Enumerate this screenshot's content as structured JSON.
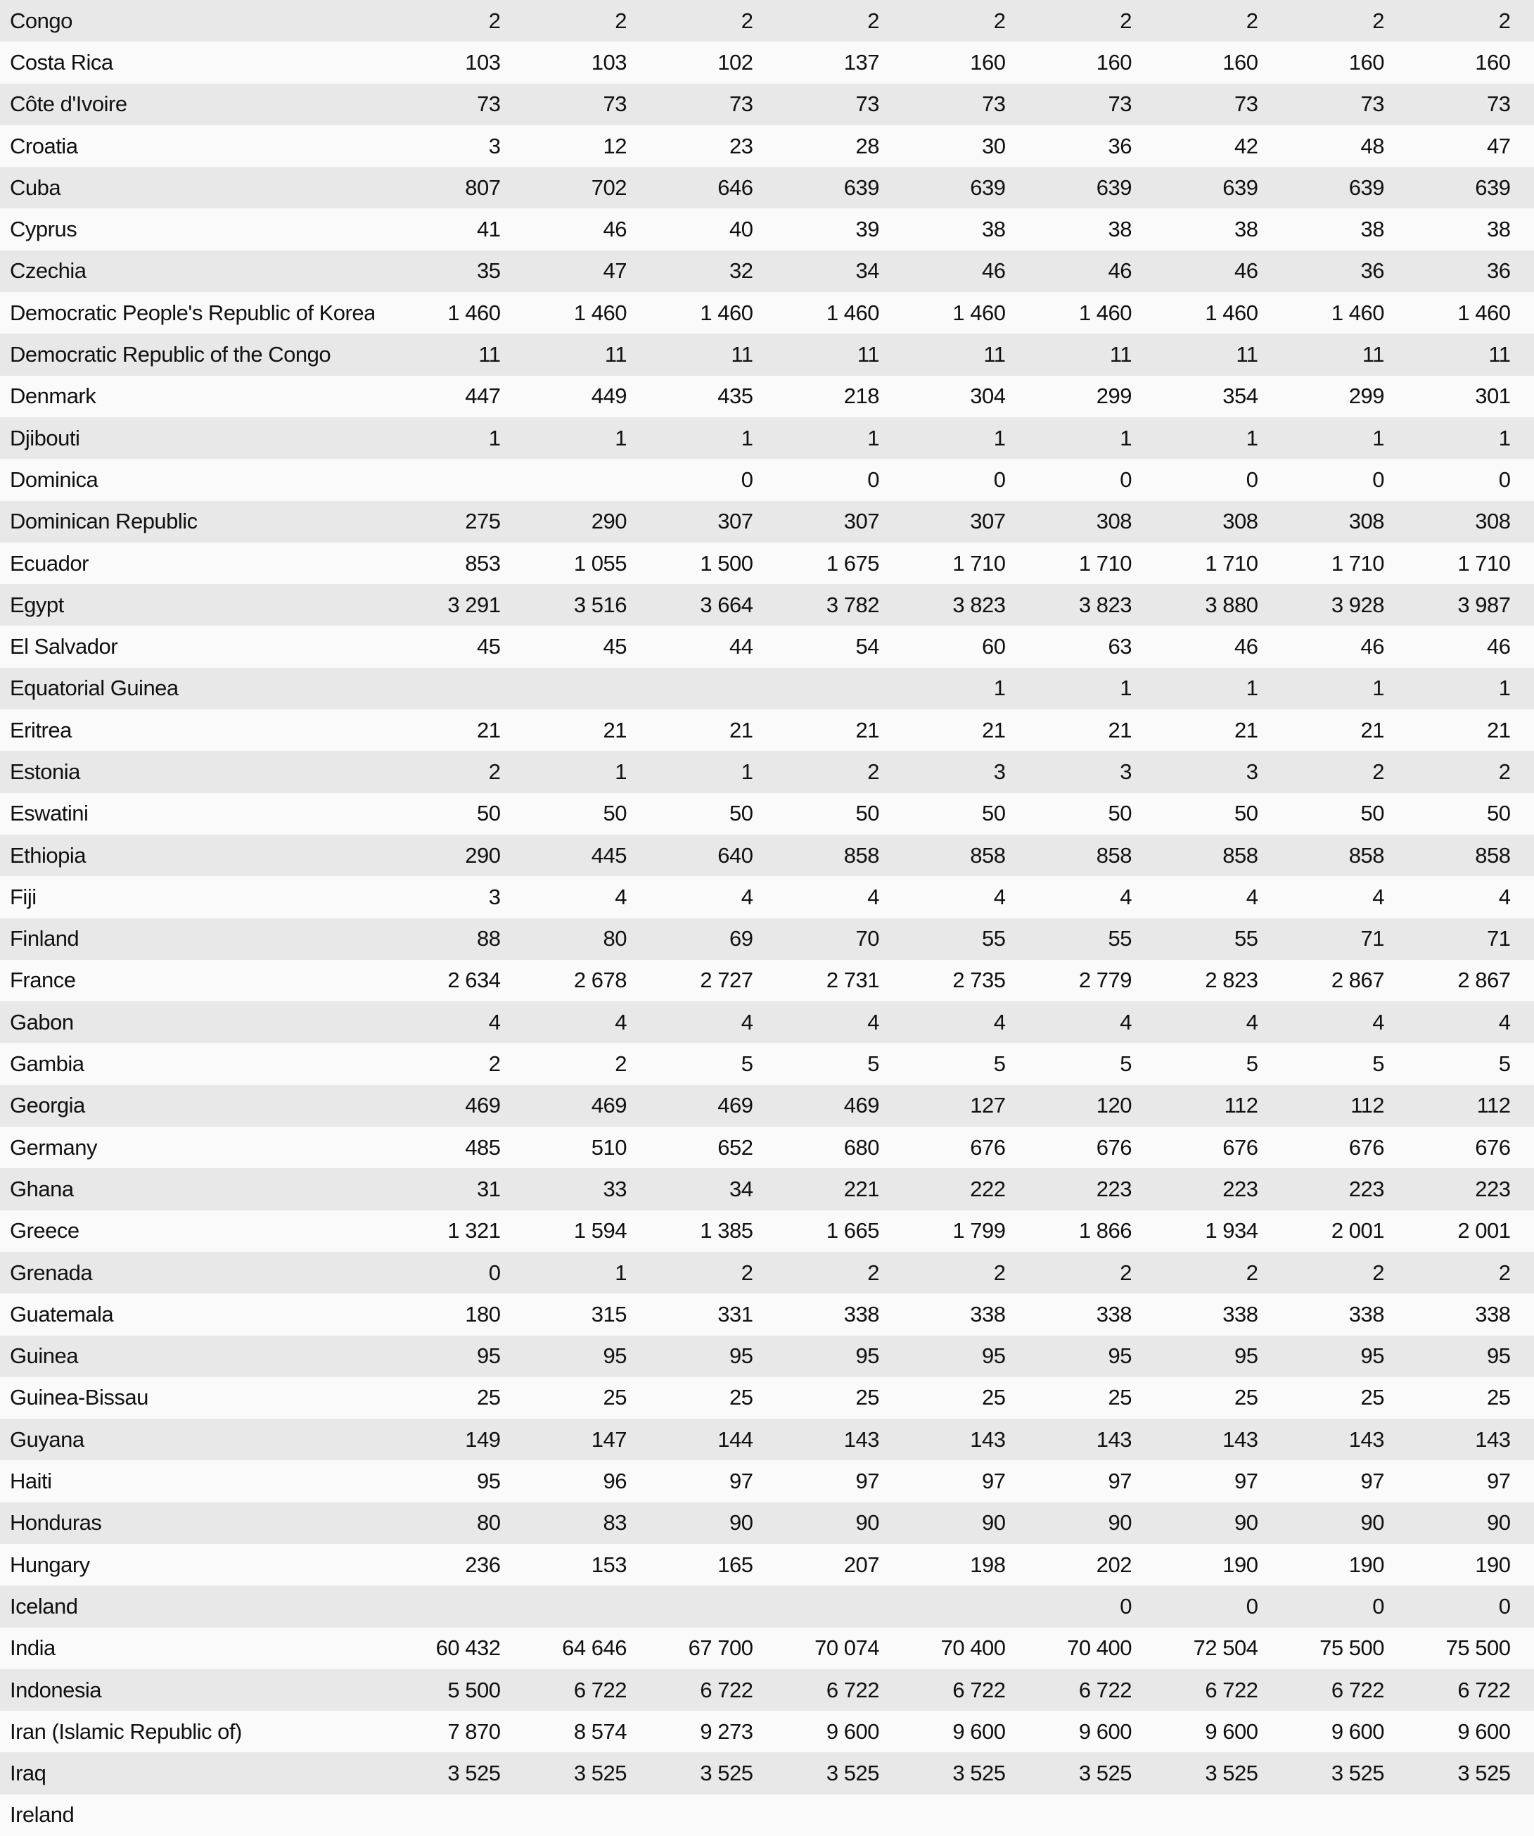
{
  "table": {
    "rows": [
      {
        "country": "Congo",
        "values": [
          "2",
          "2",
          "2",
          "2",
          "2",
          "2",
          "2",
          "2",
          "2"
        ]
      },
      {
        "country": "Costa Rica",
        "values": [
          "103",
          "103",
          "102",
          "137",
          "160",
          "160",
          "160",
          "160",
          "160"
        ]
      },
      {
        "country": "Côte d'Ivoire",
        "values": [
          "73",
          "73",
          "73",
          "73",
          "73",
          "73",
          "73",
          "73",
          "73"
        ]
      },
      {
        "country": "Croatia",
        "values": [
          "3",
          "12",
          "23",
          "28",
          "30",
          "36",
          "42",
          "48",
          "47"
        ]
      },
      {
        "country": "Cuba",
        "values": [
          "807",
          "702",
          "646",
          "639",
          "639",
          "639",
          "639",
          "639",
          "639"
        ]
      },
      {
        "country": "Cyprus",
        "values": [
          "41",
          "46",
          "40",
          "39",
          "38",
          "38",
          "38",
          "38",
          "38"
        ]
      },
      {
        "country": "Czechia",
        "values": [
          "35",
          "47",
          "32",
          "34",
          "46",
          "46",
          "46",
          "36",
          "36"
        ]
      },
      {
        "country": "Democratic People's Republic of Korea",
        "values": [
          "1 460",
          "1 460",
          "1 460",
          "1 460",
          "1 460",
          "1 460",
          "1 460",
          "1 460",
          "1 460"
        ]
      },
      {
        "country": "Democratic Republic of the Congo",
        "values": [
          "11",
          "11",
          "11",
          "11",
          "11",
          "11",
          "11",
          "11",
          "11"
        ]
      },
      {
        "country": "Denmark",
        "values": [
          "447",
          "449",
          "435",
          "218",
          "304",
          "299",
          "354",
          "299",
          "301"
        ]
      },
      {
        "country": "Djibouti",
        "values": [
          "1",
          "1",
          "1",
          "1",
          "1",
          "1",
          "1",
          "1",
          "1"
        ]
      },
      {
        "country": "Dominica",
        "values": [
          "",
          "",
          "0",
          "0",
          "0",
          "0",
          "0",
          "0",
          "0"
        ]
      },
      {
        "country": "Dominican Republic",
        "values": [
          "275",
          "290",
          "307",
          "307",
          "307",
          "308",
          "308",
          "308",
          "308"
        ]
      },
      {
        "country": "Ecuador",
        "values": [
          "853",
          "1 055",
          "1 500",
          "1 675",
          "1 710",
          "1 710",
          "1 710",
          "1 710",
          "1 710"
        ]
      },
      {
        "country": "Egypt",
        "values": [
          "3 291",
          "3 516",
          "3 664",
          "3 782",
          "3 823",
          "3 823",
          "3 880",
          "3 928",
          "3 987"
        ]
      },
      {
        "country": "El Salvador",
        "values": [
          "45",
          "45",
          "44",
          "54",
          "60",
          "63",
          "46",
          "46",
          "46"
        ]
      },
      {
        "country": "Equatorial Guinea",
        "values": [
          "",
          "",
          "",
          "",
          "1",
          "1",
          "1",
          "1",
          "1"
        ]
      },
      {
        "country": "Eritrea",
        "values": [
          "21",
          "21",
          "21",
          "21",
          "21",
          "21",
          "21",
          "21",
          "21"
        ]
      },
      {
        "country": "Estonia",
        "values": [
          "2",
          "1",
          "1",
          "2",
          "3",
          "3",
          "3",
          "2",
          "2"
        ]
      },
      {
        "country": "Eswatini",
        "values": [
          "50",
          "50",
          "50",
          "50",
          "50",
          "50",
          "50",
          "50",
          "50"
        ]
      },
      {
        "country": "Ethiopia",
        "values": [
          "290",
          "445",
          "640",
          "858",
          "858",
          "858",
          "858",
          "858",
          "858"
        ]
      },
      {
        "country": "Fiji",
        "values": [
          "3",
          "4",
          "4",
          "4",
          "4",
          "4",
          "4",
          "4",
          "4"
        ]
      },
      {
        "country": "Finland",
        "values": [
          "88",
          "80",
          "69",
          "70",
          "55",
          "55",
          "55",
          "71",
          "71"
        ]
      },
      {
        "country": "France",
        "values": [
          "2 634",
          "2 678",
          "2 727",
          "2 731",
          "2 735",
          "2 779",
          "2 823",
          "2 867",
          "2 867"
        ]
      },
      {
        "country": "Gabon",
        "values": [
          "4",
          "4",
          "4",
          "4",
          "4",
          "4",
          "4",
          "4",
          "4"
        ]
      },
      {
        "country": "Gambia",
        "values": [
          "2",
          "2",
          "5",
          "5",
          "5",
          "5",
          "5",
          "5",
          "5"
        ]
      },
      {
        "country": "Georgia",
        "values": [
          "469",
          "469",
          "469",
          "469",
          "127",
          "120",
          "112",
          "112",
          "112"
        ]
      },
      {
        "country": "Germany",
        "values": [
          "485",
          "510",
          "652",
          "680",
          "676",
          "676",
          "676",
          "676",
          "676"
        ]
      },
      {
        "country": "Ghana",
        "values": [
          "31",
          "33",
          "34",
          "221",
          "222",
          "223",
          "223",
          "223",
          "223"
        ]
      },
      {
        "country": "Greece",
        "values": [
          "1 321",
          "1 594",
          "1 385",
          "1 665",
          "1 799",
          "1 866",
          "1 934",
          "2 001",
          "2 001"
        ]
      },
      {
        "country": "Grenada",
        "values": [
          "0",
          "1",
          "2",
          "2",
          "2",
          "2",
          "2",
          "2",
          "2"
        ]
      },
      {
        "country": "Guatemala",
        "values": [
          "180",
          "315",
          "331",
          "338",
          "338",
          "338",
          "338",
          "338",
          "338"
        ]
      },
      {
        "country": "Guinea",
        "values": [
          "95",
          "95",
          "95",
          "95",
          "95",
          "95",
          "95",
          "95",
          "95"
        ]
      },
      {
        "country": "Guinea-Bissau",
        "values": [
          "25",
          "25",
          "25",
          "25",
          "25",
          "25",
          "25",
          "25",
          "25"
        ]
      },
      {
        "country": "Guyana",
        "values": [
          "149",
          "147",
          "144",
          "143",
          "143",
          "143",
          "143",
          "143",
          "143"
        ]
      },
      {
        "country": "Haiti",
        "values": [
          "95",
          "96",
          "97",
          "97",
          "97",
          "97",
          "97",
          "97",
          "97"
        ]
      },
      {
        "country": "Honduras",
        "values": [
          "80",
          "83",
          "90",
          "90",
          "90",
          "90",
          "90",
          "90",
          "90"
        ]
      },
      {
        "country": "Hungary",
        "values": [
          "236",
          "153",
          "165",
          "207",
          "198",
          "202",
          "190",
          "190",
          "190"
        ]
      },
      {
        "country": "Iceland",
        "values": [
          "",
          "",
          "",
          "",
          "",
          "0",
          "0",
          "0",
          "0"
        ]
      },
      {
        "country": "India",
        "values": [
          "60 432",
          "64 646",
          "67 700",
          "70 074",
          "70 400",
          "70 400",
          "72 504",
          "75 500",
          "75 500"
        ]
      },
      {
        "country": "Indonesia",
        "values": [
          "5 500",
          "6 722",
          "6 722",
          "6 722",
          "6 722",
          "6 722",
          "6 722",
          "6 722",
          "6 722"
        ]
      },
      {
        "country": "Iran (Islamic Republic of)",
        "values": [
          "7 870",
          "8 574",
          "9 273",
          "9 600",
          "9 600",
          "9 600",
          "9 600",
          "9 600",
          "9 600"
        ]
      },
      {
        "country": "Iraq",
        "values": [
          "3 525",
          "3 525",
          "3 525",
          "3 525",
          "3 525",
          "3 525",
          "3 525",
          "3 525",
          "3 525"
        ]
      },
      {
        "country": "Ireland",
        "values": [
          "",
          "",
          "",
          "",
          "",
          "",
          "",
          "",
          ""
        ]
      }
    ]
  }
}
